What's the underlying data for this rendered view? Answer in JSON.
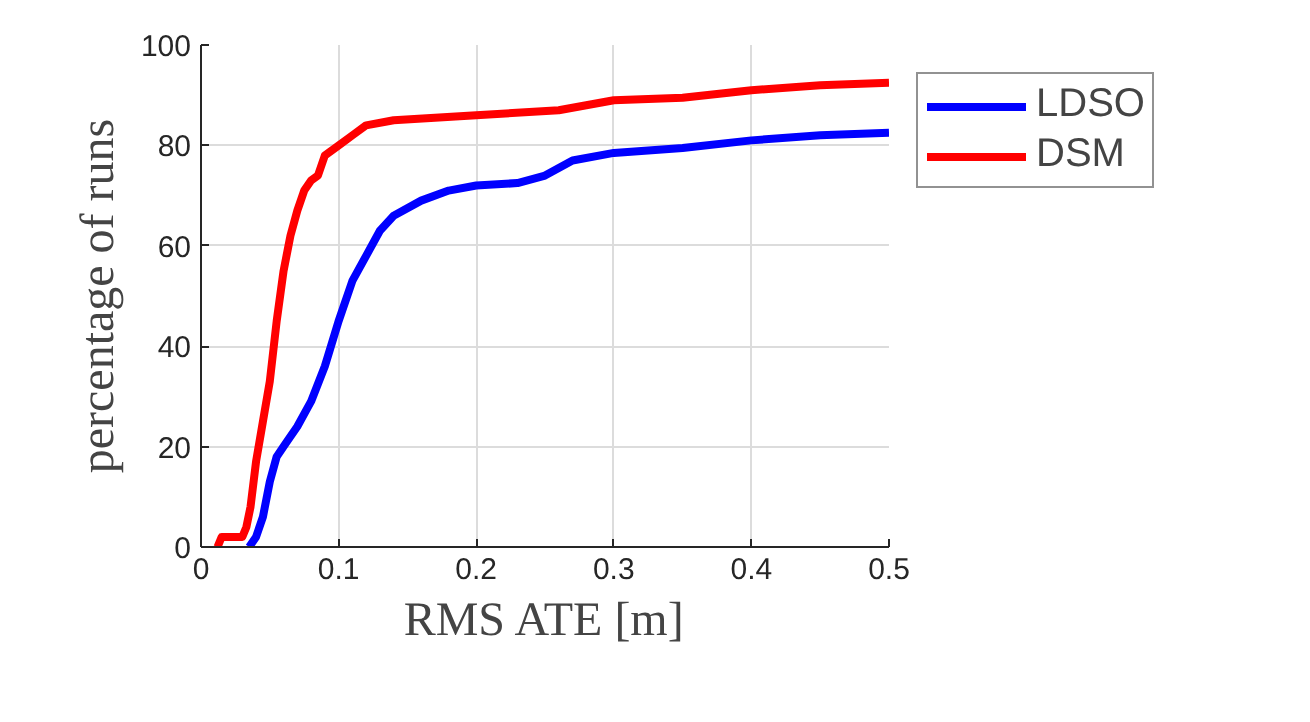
{
  "chart_data": {
    "type": "line",
    "xlabel": "RMS ATE [m]",
    "ylabel": "percentage of runs",
    "xlim": [
      0,
      0.5
    ],
    "xticks": [
      0,
      0.1,
      0.2,
      0.3,
      0.4,
      0.5
    ],
    "ylim": [
      0,
      100
    ],
    "yticks": [
      0,
      20,
      40,
      60,
      80,
      100
    ],
    "grid": true,
    "legend": "right",
    "line_style": "solid",
    "series": [
      {
        "name": "LDSO",
        "color": "#0000ff",
        "x": [
          0.035,
          0.04,
          0.045,
          0.05,
          0.055,
          0.06,
          0.07,
          0.08,
          0.09,
          0.1,
          0.11,
          0.12,
          0.13,
          0.14,
          0.16,
          0.18,
          0.2,
          0.23,
          0.25,
          0.27,
          0.3,
          0.35,
          0.4,
          0.45,
          0.5
        ],
        "values": [
          0,
          2,
          6,
          13,
          18,
          20,
          24,
          29,
          36,
          45,
          53,
          58,
          63,
          66,
          69,
          71,
          72,
          72.5,
          74,
          77,
          78.5,
          79.5,
          81,
          82,
          82.5
        ]
      },
      {
        "name": "DSM",
        "color": "#ff0000",
        "x": [
          0.012,
          0.015,
          0.03,
          0.033,
          0.036,
          0.04,
          0.045,
          0.05,
          0.055,
          0.06,
          0.065,
          0.07,
          0.075,
          0.08,
          0.085,
          0.09,
          0.1,
          0.11,
          0.12,
          0.14,
          0.2,
          0.26,
          0.28,
          0.3,
          0.35,
          0.4,
          0.45,
          0.5
        ],
        "values": [
          0,
          2,
          2,
          4,
          8,
          17,
          25,
          33,
          45,
          55,
          62,
          67,
          71,
          73,
          74,
          78,
          80,
          82,
          84,
          85,
          86,
          87,
          88,
          89,
          89.5,
          91,
          92,
          92.5
        ]
      }
    ]
  }
}
